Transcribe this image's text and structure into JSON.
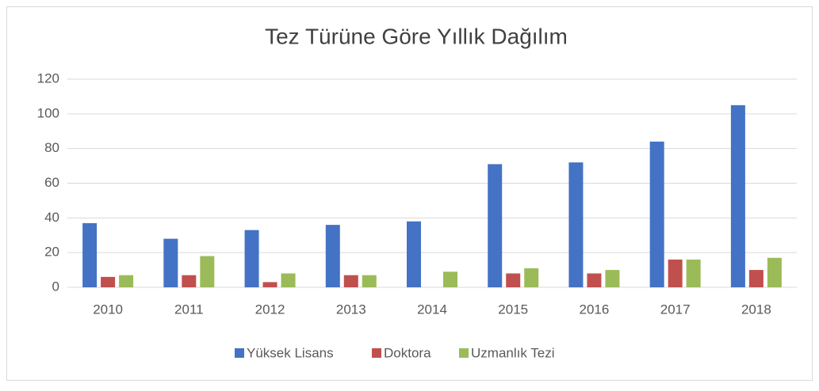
{
  "chart_data": {
    "type": "bar",
    "title": "Tez Türüne Göre Yıllık Dağılım",
    "categories": [
      "2010",
      "2011",
      "2012",
      "2013",
      "2014",
      "2015",
      "2016",
      "2017",
      "2018"
    ],
    "series": [
      {
        "name": "Yüksek Lisans",
        "color": "#4472c4",
        "values": [
          37,
          28,
          33,
          36,
          38,
          71,
          72,
          84,
          105
        ]
      },
      {
        "name": "Doktora",
        "color": "#c0504d",
        "values": [
          6,
          7,
          3,
          7,
          0,
          8,
          8,
          16,
          10
        ]
      },
      {
        "name": "Uzmanlık Tezi",
        "color": "#9bbb59",
        "values": [
          7,
          18,
          8,
          7,
          9,
          11,
          10,
          16,
          17
        ]
      }
    ],
    "ylim": [
      0,
      120
    ],
    "yticks": [
      0,
      20,
      40,
      60,
      80,
      100,
      120
    ],
    "grid": true,
    "legend": "bottom"
  }
}
